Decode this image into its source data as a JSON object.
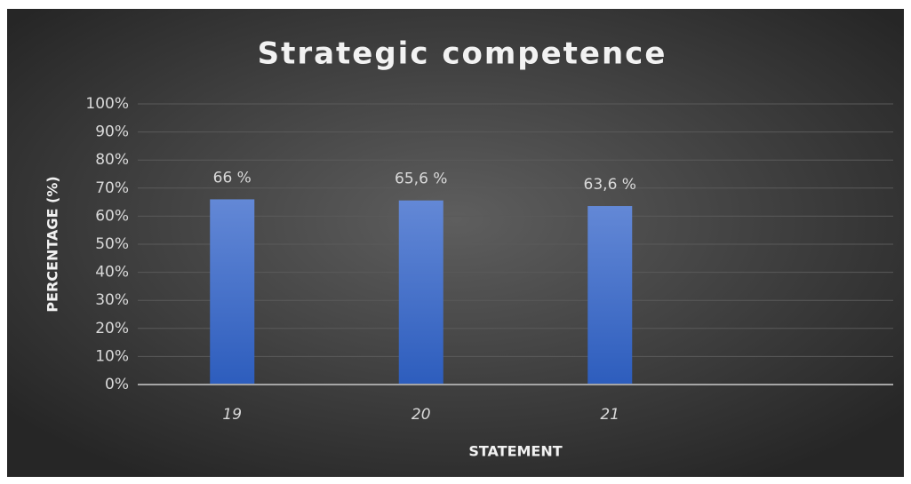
{
  "chart_data": {
    "type": "bar",
    "title": "Strategic  competence",
    "x_label": "STATEMENT",
    "y_label": "PERCENTAGE (%)",
    "categories": [
      "19",
      "20",
      "21",
      null
    ],
    "values": [
      66,
      65.6,
      63.6,
      null
    ],
    "value_labels": [
      "66 %",
      "65,6 %",
      "63,6 %",
      null
    ],
    "color": "#4472c4",
    "ylim": [
      0,
      100
    ],
    "yticks": [
      {
        "value": 0,
        "label": "0%"
      },
      {
        "value": 10,
        "label": "10%"
      },
      {
        "value": 20,
        "label": "20%"
      },
      {
        "value": 30,
        "label": "30%"
      },
      {
        "value": 40,
        "label": "40%"
      },
      {
        "value": 50,
        "label": "50%"
      },
      {
        "value": 60,
        "label": "60%"
      },
      {
        "value": 70,
        "label": "70%"
      },
      {
        "value": 80,
        "label": "80%"
      },
      {
        "value": 90,
        "label": "90%"
      },
      {
        "value": 100,
        "label": "100%"
      }
    ],
    "grid": true
  }
}
